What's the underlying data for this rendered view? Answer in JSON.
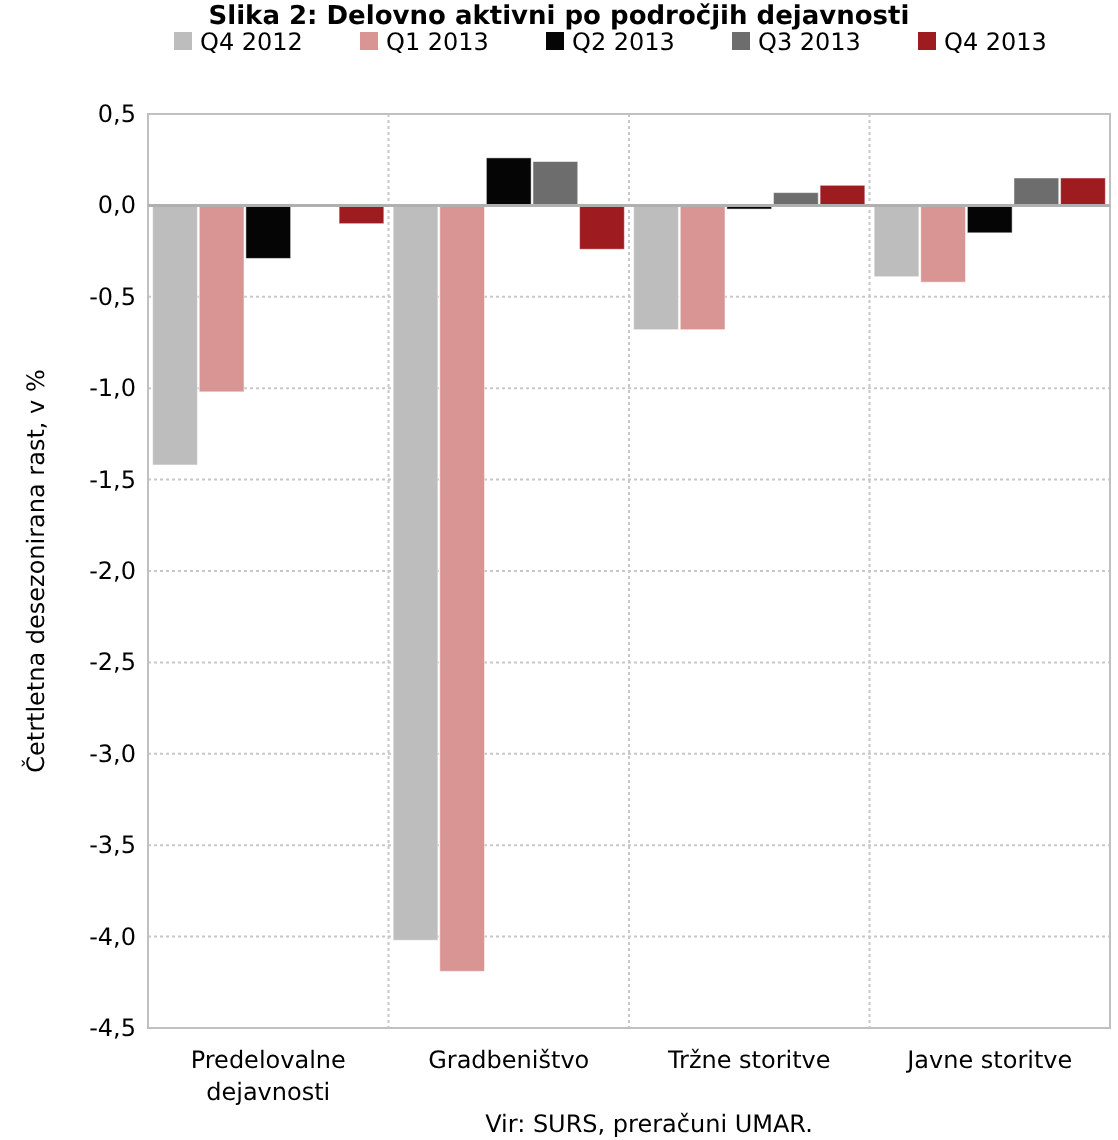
{
  "chart_data": {
    "type": "bar",
    "title": "Slika 2: Delovno aktivni po področjih dejavnosti",
    "ylabel": "Četrtletna desezonirana rast, v %",
    "categories": [
      "Predelovalne dejavnosti",
      "Gradbeništvo",
      "Tržne storitve",
      "Javne storitve"
    ],
    "series": [
      {
        "name": "Q4 2012",
        "color": "#bdbdbd",
        "values": [
          -1.42,
          -4.02,
          -0.68,
          -0.39
        ]
      },
      {
        "name": "Q1 2013",
        "color": "#d99594",
        "values": [
          -1.02,
          -4.19,
          -0.68,
          -0.42
        ]
      },
      {
        "name": "Q2 2013",
        "color": "#050505",
        "values": [
          -0.29,
          0.26,
          -0.02,
          -0.15
        ]
      },
      {
        "name": "Q3 2013",
        "color": "#6d6d6d",
        "values": [
          null,
          0.24,
          0.07,
          0.15
        ]
      },
      {
        "name": "Q4 2013",
        "color": "#9e1b20",
        "values": [
          -0.1,
          -0.24,
          0.11,
          0.15
        ]
      }
    ],
    "ylim": [
      -4.5,
      0.5
    ],
    "yticks": [
      {
        "value": 0.5,
        "label": "0,5"
      },
      {
        "value": 0,
        "label": "0,0"
      },
      {
        "value": -0.5,
        "label": "-0,5"
      },
      {
        "value": -1,
        "label": "-1,0"
      },
      {
        "value": -1.5,
        "label": "-1,5"
      },
      {
        "value": -2,
        "label": "-2,0"
      },
      {
        "value": -2.5,
        "label": "-2,5"
      },
      {
        "value": -3,
        "label": "-3,0"
      },
      {
        "value": -3.5,
        "label": "-3,5"
      },
      {
        "value": -4,
        "label": "-4,0"
      },
      {
        "value": -4.5,
        "label": "-4,5"
      }
    ],
    "grid": true,
    "legend": "top",
    "annotations": [
      "Vir: SURS, preračuni UMAR."
    ]
  }
}
